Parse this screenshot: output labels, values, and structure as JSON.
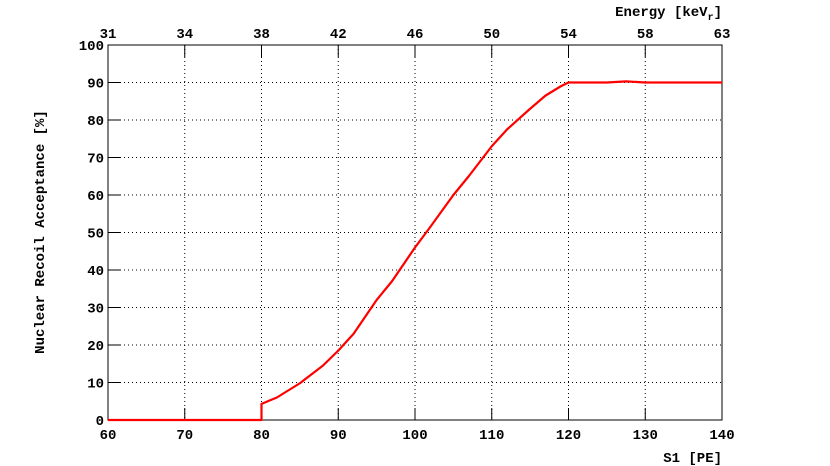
{
  "chart_data": {
    "type": "line",
    "xlabel": "S1 [PE]",
    "ylabel": "Nuclear Recoil Acceptance [%]",
    "x2label": [
      "Energy [keV",
      "r",
      "]"
    ],
    "x": [
      60,
      80,
      80,
      82,
      85,
      88,
      90,
      92,
      94,
      95,
      97,
      100,
      102,
      105,
      107,
      110,
      112,
      115,
      117,
      119,
      120,
      125,
      127.5,
      130,
      140
    ],
    "series": [
      {
        "color": "#ff0000",
        "values": [
          0,
          0,
          4.3,
          6,
          9.8,
          14.5,
          18.5,
          23,
          29,
          32,
          37,
          46,
          51.5,
          60,
          65,
          73,
          77.5,
          83,
          86.5,
          89,
          90,
          90,
          90.3,
          90,
          90
        ]
      }
    ],
    "xlim": [
      60,
      140
    ],
    "ylim": [
      0,
      100
    ],
    "xticks": [
      60,
      70,
      80,
      90,
      100,
      110,
      120,
      130,
      140
    ],
    "yticks": [
      0,
      10,
      20,
      30,
      40,
      50,
      60,
      70,
      80,
      90,
      100
    ],
    "x2ticks": [
      {
        "value": 60,
        "label": "31"
      },
      {
        "value": 70,
        "label": "34"
      },
      {
        "value": 80,
        "label": "38"
      },
      {
        "value": 90,
        "label": "42"
      },
      {
        "value": 100,
        "label": "46"
      },
      {
        "value": 110,
        "label": "50"
      },
      {
        "value": 120,
        "label": "54"
      },
      {
        "value": 130,
        "label": "58"
      },
      {
        "value": 140,
        "label": "63"
      }
    ],
    "grid": true
  }
}
